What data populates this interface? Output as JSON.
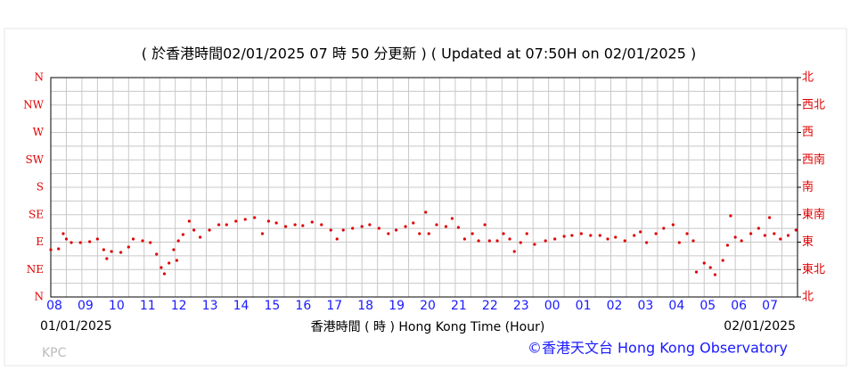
{
  "chart_data": {
    "type": "scatter",
    "title": "( 於香港時間02/01/2025 07 時 50 分更新 ) ( Updated at 07:50H on 02/01/2025 )",
    "x_label": "香港時間 ( 時 ) Hong Kong Time (Hour)",
    "start_date": "01/01/2025",
    "end_date": "02/01/2025",
    "station": "KPC",
    "credit": "©香港天文台 Hong Kong Observatory",
    "color": "#e00000",
    "grid": true,
    "xlim": [
      0,
      24
    ],
    "ylim": [
      0,
      360
    ],
    "y2lim": [
      0,
      360
    ],
    "xticks": [
      {
        "value": 0,
        "label": "08"
      },
      {
        "value": 1,
        "label": "09"
      },
      {
        "value": 2,
        "label": "10"
      },
      {
        "value": 3,
        "label": "11"
      },
      {
        "value": 4,
        "label": "12"
      },
      {
        "value": 5,
        "label": "13"
      },
      {
        "value": 6,
        "label": "14"
      },
      {
        "value": 7,
        "label": "15"
      },
      {
        "value": 8,
        "label": "16"
      },
      {
        "value": 9,
        "label": "17"
      },
      {
        "value": 10,
        "label": "18"
      },
      {
        "value": 11,
        "label": "19"
      },
      {
        "value": 12,
        "label": "20"
      },
      {
        "value": 13,
        "label": "21"
      },
      {
        "value": 14,
        "label": "22"
      },
      {
        "value": 15,
        "label": "23"
      },
      {
        "value": 16,
        "label": "00"
      },
      {
        "value": 17,
        "label": "01"
      },
      {
        "value": 18,
        "label": "02"
      },
      {
        "value": 19,
        "label": "03"
      },
      {
        "value": 20,
        "label": "04"
      },
      {
        "value": 21,
        "label": "05"
      },
      {
        "value": 22,
        "label": "06"
      },
      {
        "value": 23,
        "label": "07"
      }
    ],
    "minor_xticks": [
      0.5,
      1.5,
      2.5,
      3.5,
      4.5,
      5.5,
      6.5,
      7.5,
      8.5,
      9.5,
      10.5,
      11.5,
      12.5,
      13.5,
      14.5,
      15.5,
      16.5,
      17.5,
      18.5,
      19.5,
      20.5,
      21.5,
      22.5,
      23.5
    ],
    "yticks": [
      {
        "value": 0,
        "label": "N"
      },
      {
        "value": 45,
        "label": "NE"
      },
      {
        "value": 90,
        "label": "E"
      },
      {
        "value": 135,
        "label": "SE"
      },
      {
        "value": 180,
        "label": "S"
      },
      {
        "value": 225,
        "label": "SW"
      },
      {
        "value": 270,
        "label": "W"
      },
      {
        "value": 315,
        "label": "NW"
      },
      {
        "value": 360,
        "label": "N"
      }
    ],
    "y2ticks": [
      {
        "value": 0,
        "label": "北"
      },
      {
        "value": 45,
        "label": "東北"
      },
      {
        "value": 90,
        "label": "東"
      },
      {
        "value": 135,
        "label": "東南"
      },
      {
        "value": 180,
        "label": "南"
      },
      {
        "value": 225,
        "label": "西南"
      },
      {
        "value": 270,
        "label": "西"
      },
      {
        "value": 315,
        "label": "西北"
      },
      {
        "value": 360,
        "label": "北"
      }
    ],
    "minor_yticks": [
      22.5,
      67.5,
      112.5,
      157.5,
      202.5,
      247.5,
      292.5,
      337.5
    ],
    "x": [
      0.0,
      0.25,
      0.4,
      0.5,
      0.66,
      0.95,
      1.25,
      1.5,
      1.7,
      1.8,
      1.95,
      2.25,
      2.5,
      2.65,
      2.95,
      3.2,
      3.4,
      3.55,
      3.65,
      3.8,
      3.95,
      4.05,
      4.1,
      4.25,
      4.45,
      4.6,
      4.8,
      5.1,
      5.4,
      5.65,
      5.95,
      6.25,
      6.55,
      6.8,
      7.0,
      7.25,
      7.55,
      7.85,
      8.1,
      8.4,
      8.7,
      9.0,
      9.2,
      9.4,
      9.7,
      10.0,
      10.25,
      10.55,
      10.85,
      11.1,
      11.4,
      11.65,
      11.85,
      12.05,
      12.15,
      12.4,
      12.7,
      12.9,
      13.1,
      13.3,
      13.55,
      13.75,
      13.95,
      14.1,
      14.35,
      14.55,
      14.75,
      14.9,
      15.1,
      15.3,
      15.55,
      15.9,
      16.2,
      16.5,
      16.75,
      17.05,
      17.35,
      17.65,
      17.9,
      18.15,
      18.45,
      18.75,
      18.95,
      19.15,
      19.45,
      19.7,
      20.0,
      20.2,
      20.45,
      20.65,
      20.75,
      21.0,
      21.2,
      21.35,
      21.6,
      21.75,
      21.85,
      22.0,
      22.2,
      22.5,
      22.75,
      22.95,
      23.1,
      23.25,
      23.45,
      23.7,
      23.95
    ],
    "values": [
      77.6,
      79.0,
      103.9,
      95.1,
      89.3,
      89.3,
      90.7,
      95.1,
      77.6,
      62.9,
      74.6,
      73.2,
      82.0,
      95.1,
      92.2,
      89.3,
      70.2,
      48.3,
      38.0,
      55.6,
      77.6,
      60.0,
      92.2,
      102.4,
      124.4,
      109.8,
      98.0,
      109.8,
      118.5,
      118.5,
      124.4,
      127.3,
      130.2,
      103.9,
      124.4,
      121.5,
      115.6,
      118.5,
      117.1,
      122.9,
      118.5,
      109.8,
      95.1,
      109.8,
      112.7,
      115.6,
      118.5,
      112.7,
      103.9,
      109.8,
      115.6,
      121.5,
      103.9,
      139.0,
      103.9,
      118.5,
      115.6,
      128.8,
      114.1,
      95.1,
      103.9,
      92.2,
      118.5,
      92.2,
      92.2,
      103.9,
      95.1,
      74.6,
      89.3,
      103.9,
      86.3,
      92.2,
      95.1,
      99.5,
      101.0,
      103.9,
      101.0,
      101.0,
      95.1,
      98.0,
      92.2,
      101.0,
      106.8,
      89.3,
      103.9,
      112.7,
      118.5,
      89.3,
      103.9,
      92.2,
      41.0,
      55.6,
      48.3,
      36.6,
      60.0,
      84.9,
      133.2,
      98.0,
      92.2,
      103.9,
      112.7,
      101.0,
      130.2,
      103.9,
      95.1,
      101.0,
      109.8
    ]
  }
}
